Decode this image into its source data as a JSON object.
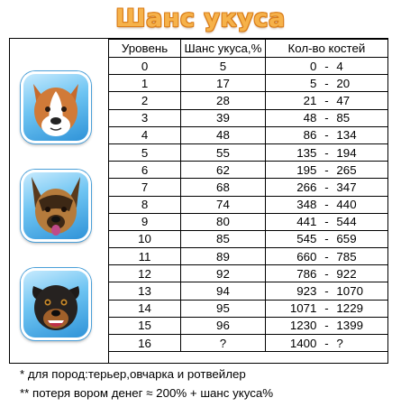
{
  "title": "Шанс укуса",
  "table": {
    "headers": [
      "Уровень",
      "Шанс укуса,%",
      "Кол-во костей"
    ],
    "rows": [
      {
        "level": "0",
        "chance": "5",
        "lo": "0",
        "hi": "4"
      },
      {
        "level": "1",
        "chance": "17",
        "lo": "5",
        "hi": "20"
      },
      {
        "level": "2",
        "chance": "28",
        "lo": "21",
        "hi": "47"
      },
      {
        "level": "3",
        "chance": "39",
        "lo": "48",
        "hi": "85"
      },
      {
        "level": "4",
        "chance": "48",
        "lo": "86",
        "hi": "134"
      },
      {
        "level": "5",
        "chance": "55",
        "lo": "135",
        "hi": "194"
      },
      {
        "level": "6",
        "chance": "62",
        "lo": "195",
        "hi": "265"
      },
      {
        "level": "7",
        "chance": "68",
        "lo": "266",
        "hi": "347"
      },
      {
        "level": "8",
        "chance": "74",
        "lo": "348",
        "hi": "440"
      },
      {
        "level": "9",
        "chance": "80",
        "lo": "441",
        "hi": "544"
      },
      {
        "level": "10",
        "chance": "85",
        "lo": "545",
        "hi": "659"
      },
      {
        "level": "11",
        "chance": "89",
        "lo": "660",
        "hi": "785"
      },
      {
        "level": "12",
        "chance": "92",
        "lo": "786",
        "hi": "922"
      },
      {
        "level": "13",
        "chance": "94",
        "lo": "923",
        "hi": "1070"
      },
      {
        "level": "14",
        "chance": "95",
        "lo": "1071",
        "hi": "1229"
      },
      {
        "level": "15",
        "chance": "96",
        "lo": "1230",
        "hi": "1399"
      },
      {
        "level": "16",
        "chance": "?",
        "lo": "1400",
        "hi": "?"
      }
    ],
    "separator": "-"
  },
  "icons": [
    "terrier-dog-icon",
    "shepherd-dog-icon",
    "rottweiler-dog-icon"
  ],
  "colors": {
    "title": "#f6b24a",
    "title_outline": "#d97d1b",
    "badge": "#4aa8e8"
  },
  "notes": [
    "* для пород:терьер,овчарка и ротвейлер",
    "** потеря вором денег ≈ 200% + шанс укуса%"
  ]
}
